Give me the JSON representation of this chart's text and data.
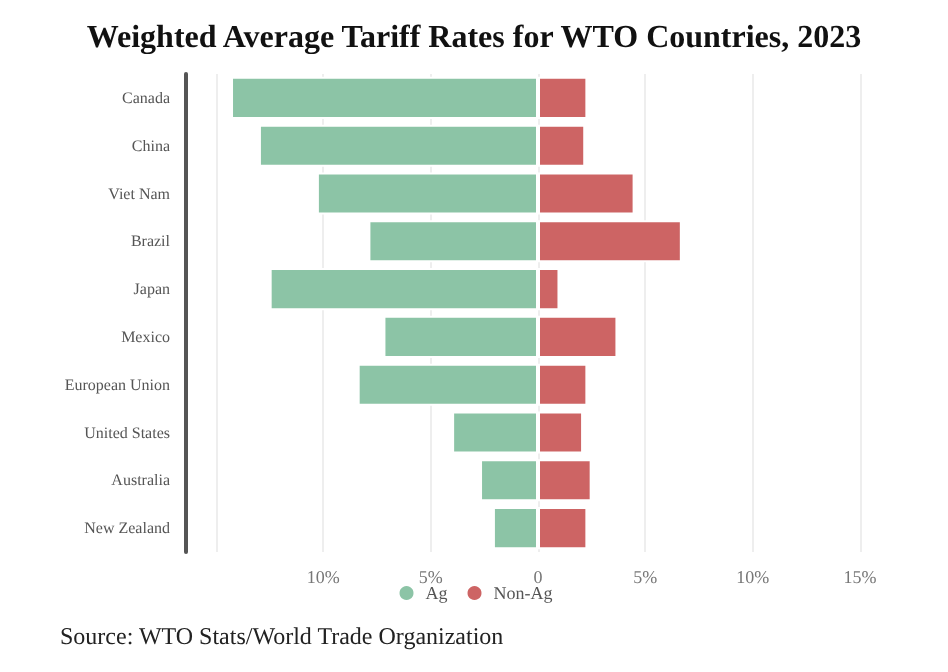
{
  "chart_data": {
    "type": "bar",
    "title": "Weighted Average Tariff Rates for WTO Countries, 2023",
    "orientation": "horizontal",
    "stacked": true,
    "categories": [
      "Canada",
      "China",
      "Viet Nam",
      "Brazil",
      "Japan",
      "Mexico",
      "European Union",
      "United States",
      "Australia",
      "New Zealand"
    ],
    "series": [
      {
        "name": "Ag",
        "color": "#8cc4a6",
        "values": [
          -14.3,
          -13.0,
          -10.3,
          -7.9,
          -12.5,
          -7.2,
          -8.4,
          -4.0,
          -2.7,
          -2.1
        ]
      },
      {
        "name": "Non-Ag",
        "color": "#cd6464",
        "values": [
          2.3,
          2.2,
          4.5,
          6.7,
          1.0,
          3.7,
          2.3,
          2.1,
          2.5,
          2.3
        ]
      }
    ],
    "xlim": [
      -15,
      15
    ],
    "xticks": [
      {
        "value": -15,
        "label": null
      },
      {
        "value": -10,
        "label": "10%"
      },
      {
        "value": -5,
        "label": "5%"
      },
      0,
      {
        "value": 5,
        "label": "5%"
      },
      {
        "value": 10,
        "label": "10%"
      },
      {
        "value": 15,
        "label": "15%"
      }
    ],
    "grid": "x",
    "legend": "bottom",
    "annotations": [
      "Source: WTO Stats/World Trade Organization"
    ]
  }
}
